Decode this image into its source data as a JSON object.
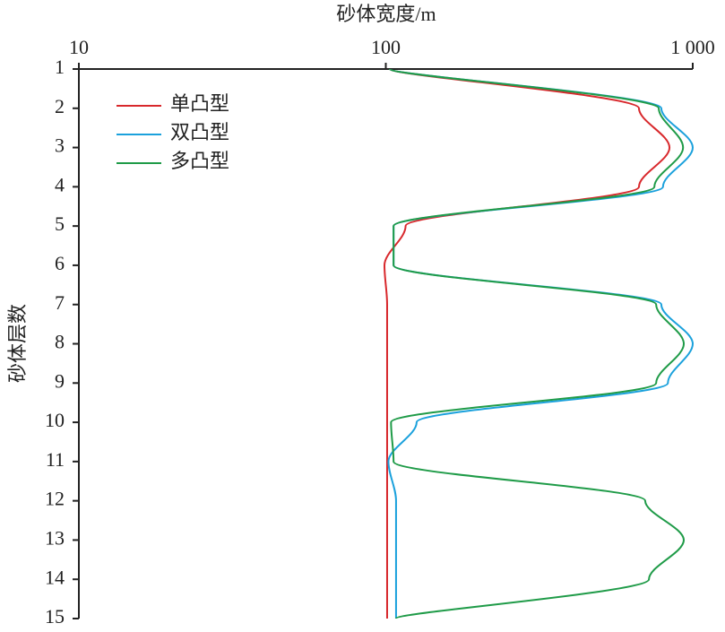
{
  "chart_data": {
    "type": "line",
    "orientation": "horizontal",
    "x_label": "砂体宽度/m",
    "y_label": "砂体层数",
    "xscale": "log",
    "xlim": [
      10,
      1000
    ],
    "xticks": [
      10,
      100,
      {
        "value": 1000,
        "label": "1 000"
      }
    ],
    "y": [
      1,
      2,
      3,
      4,
      5,
      6,
      7,
      8,
      9,
      10,
      11,
      12,
      13,
      14,
      15
    ],
    "ylim": [
      1,
      15
    ],
    "yticks": [
      1,
      2,
      3,
      4,
      5,
      6,
      7,
      8,
      9,
      10,
      11,
      12,
      13,
      14,
      15
    ],
    "y_inverted": true,
    "legend": "top-left",
    "series": [
      {
        "name": "单凸型",
        "color": "#d8282c",
        "values": [
          103,
          668,
          840,
          668,
          116,
          99,
          101,
          101,
          101,
          101,
          101,
          101,
          101,
          101,
          101
        ]
      },
      {
        "name": "双凸型",
        "color": "#1ba1dc",
        "values": [
          103,
          790,
          1000,
          800,
          106,
          106,
          790,
          1000,
          830,
          126,
          102,
          108,
          108,
          108,
          108
        ]
      },
      {
        "name": "多凸型",
        "color": "#1f9b48",
        "values": [
          103,
          775,
          930,
          750,
          106,
          106,
          760,
          935,
          760,
          104,
          106,
          700,
          935,
          720,
          108
        ]
      }
    ]
  }
}
